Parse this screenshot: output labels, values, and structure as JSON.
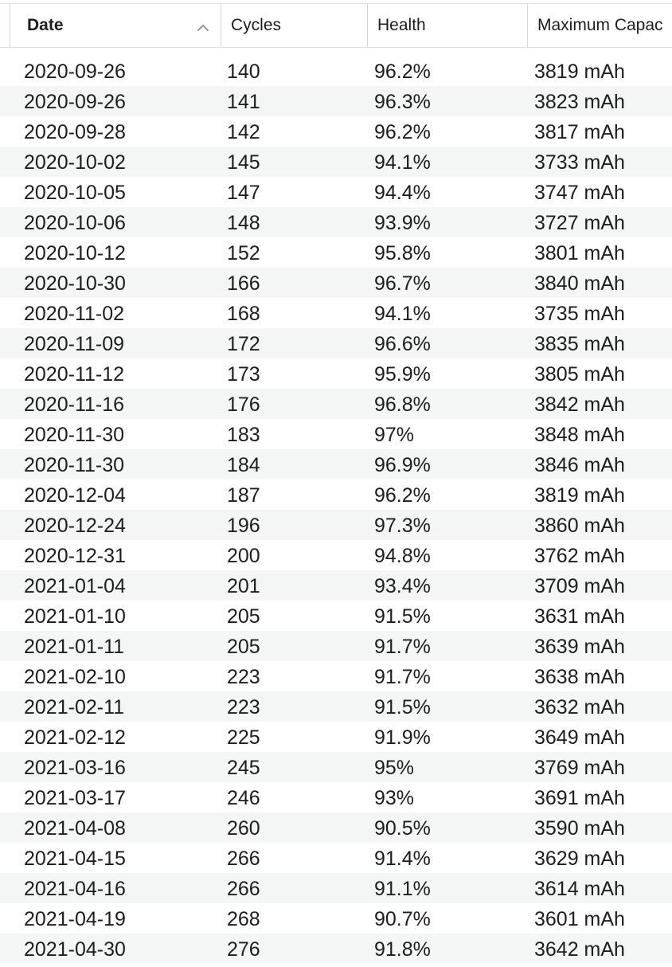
{
  "table": {
    "columns": [
      {
        "label": "Date",
        "sorted": true,
        "sort_direction": "ascending"
      },
      {
        "label": "Cycles"
      },
      {
        "label": "Health"
      },
      {
        "label": "Maximum Capac"
      }
    ],
    "rows": [
      {
        "date": "2020-09-26",
        "cycles": "140",
        "health": "96.2%",
        "capacity": "3819 mAh"
      },
      {
        "date": "2020-09-26",
        "cycles": "141",
        "health": "96.3%",
        "capacity": "3823 mAh"
      },
      {
        "date": "2020-09-28",
        "cycles": "142",
        "health": "96.2%",
        "capacity": "3817 mAh"
      },
      {
        "date": "2020-10-02",
        "cycles": "145",
        "health": "94.1%",
        "capacity": "3733 mAh"
      },
      {
        "date": "2020-10-05",
        "cycles": "147",
        "health": "94.4%",
        "capacity": "3747 mAh"
      },
      {
        "date": "2020-10-06",
        "cycles": "148",
        "health": "93.9%",
        "capacity": "3727 mAh"
      },
      {
        "date": "2020-10-12",
        "cycles": "152",
        "health": "95.8%",
        "capacity": "3801 mAh"
      },
      {
        "date": "2020-10-30",
        "cycles": "166",
        "health": "96.7%",
        "capacity": "3840 mAh"
      },
      {
        "date": "2020-11-02",
        "cycles": "168",
        "health": "94.1%",
        "capacity": "3735 mAh"
      },
      {
        "date": "2020-11-09",
        "cycles": "172",
        "health": "96.6%",
        "capacity": "3835 mAh"
      },
      {
        "date": "2020-11-12",
        "cycles": "173",
        "health": "95.9%",
        "capacity": "3805 mAh"
      },
      {
        "date": "2020-11-16",
        "cycles": "176",
        "health": "96.8%",
        "capacity": "3842 mAh"
      },
      {
        "date": "2020-11-30",
        "cycles": "183",
        "health": "97%",
        "capacity": "3848 mAh"
      },
      {
        "date": "2020-11-30",
        "cycles": "184",
        "health": "96.9%",
        "capacity": "3846 mAh"
      },
      {
        "date": "2020-12-04",
        "cycles": "187",
        "health": "96.2%",
        "capacity": "3819 mAh"
      },
      {
        "date": "2020-12-24",
        "cycles": "196",
        "health": "97.3%",
        "capacity": "3860 mAh"
      },
      {
        "date": "2020-12-31",
        "cycles": "200",
        "health": "94.8%",
        "capacity": "3762 mAh"
      },
      {
        "date": "2021-01-04",
        "cycles": "201",
        "health": "93.4%",
        "capacity": "3709 mAh"
      },
      {
        "date": "2021-01-10",
        "cycles": "205",
        "health": "91.5%",
        "capacity": "3631 mAh"
      },
      {
        "date": "2021-01-11",
        "cycles": "205",
        "health": "91.7%",
        "capacity": "3639 mAh"
      },
      {
        "date": "2021-02-10",
        "cycles": "223",
        "health": "91.7%",
        "capacity": "3638 mAh"
      },
      {
        "date": "2021-02-11",
        "cycles": "223",
        "health": "91.5%",
        "capacity": "3632 mAh"
      },
      {
        "date": "2021-02-12",
        "cycles": "225",
        "health": "91.9%",
        "capacity": "3649 mAh"
      },
      {
        "date": "2021-03-16",
        "cycles": "245",
        "health": "95%",
        "capacity": "3769 mAh"
      },
      {
        "date": "2021-03-17",
        "cycles": "246",
        "health": "93%",
        "capacity": "3691 mAh"
      },
      {
        "date": "2021-04-08",
        "cycles": "260",
        "health": "90.5%",
        "capacity": "3590 mAh"
      },
      {
        "date": "2021-04-15",
        "cycles": "266",
        "health": "91.4%",
        "capacity": "3629 mAh"
      },
      {
        "date": "2021-04-16",
        "cycles": "266",
        "health": "91.1%",
        "capacity": "3614 mAh"
      },
      {
        "date": "2021-04-19",
        "cycles": "268",
        "health": "90.7%",
        "capacity": "3601 mAh"
      },
      {
        "date": "2021-04-30",
        "cycles": "276",
        "health": "91.8%",
        "capacity": "3642 mAh"
      }
    ]
  },
  "colors": {
    "header_separator": "#d6d6d6",
    "alternate_row": "#f4f5f5",
    "text": "#1d1d1f"
  },
  "icons": {
    "sort": "chevron-up-icon"
  }
}
